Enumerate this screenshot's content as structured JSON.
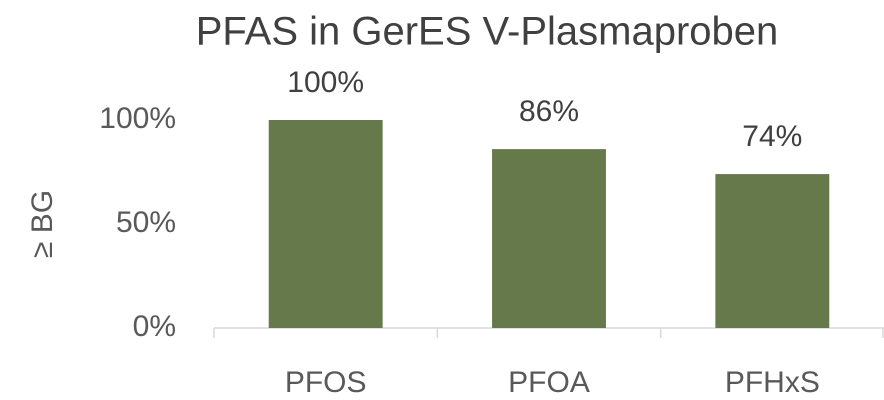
{
  "chart_data": {
    "type": "bar",
    "title": "PFAS in GerES V-Plasmaproben",
    "y_label": "≥ BG",
    "categories": [
      "PFOS",
      "PFOA",
      "PFHxS"
    ],
    "values": [
      100,
      86,
      74
    ],
    "value_labels": [
      "100%",
      "86%",
      "74%"
    ],
    "color": "#66794a",
    "ylim": [
      0,
      100
    ],
    "yticks": [
      {
        "value": 0,
        "label": "0%"
      },
      {
        "value": 50,
        "label": "50%"
      },
      {
        "value": 100,
        "label": "100%"
      }
    ],
    "grid": false
  }
}
